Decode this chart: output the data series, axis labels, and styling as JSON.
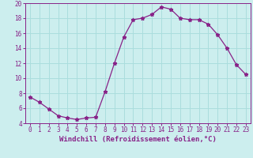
{
  "hours": [
    0,
    1,
    2,
    3,
    4,
    5,
    6,
    7,
    8,
    9,
    10,
    11,
    12,
    13,
    14,
    15,
    16,
    17,
    18,
    19,
    20,
    21,
    22,
    23
  ],
  "values": [
    7.5,
    6.8,
    5.9,
    5.0,
    4.7,
    4.5,
    4.7,
    4.8,
    8.2,
    12.0,
    15.5,
    17.8,
    18.0,
    18.5,
    19.5,
    19.2,
    18.0,
    17.8,
    17.8,
    17.2,
    15.8,
    14.0,
    11.8,
    10.5
  ],
  "line_color": "#882288",
  "marker": "*",
  "marker_size": 3.5,
  "bg_color": "#cceeee",
  "grid_color": "#aadddd",
  "xlabel": "Windchill (Refroidissement éolien,°C)",
  "ylim": [
    4,
    20
  ],
  "xlim_min": -0.5,
  "xlim_max": 23.5,
  "yticks": [
    4,
    6,
    8,
    10,
    12,
    14,
    16,
    18,
    20
  ],
  "xticks": [
    0,
    1,
    2,
    3,
    4,
    5,
    6,
    7,
    8,
    9,
    10,
    11,
    12,
    13,
    14,
    15,
    16,
    17,
    18,
    19,
    20,
    21,
    22,
    23
  ],
  "axis_color": "#882288",
  "font_family": "monospace",
  "tick_fontsize": 5.5,
  "xlabel_fontsize": 6.5
}
